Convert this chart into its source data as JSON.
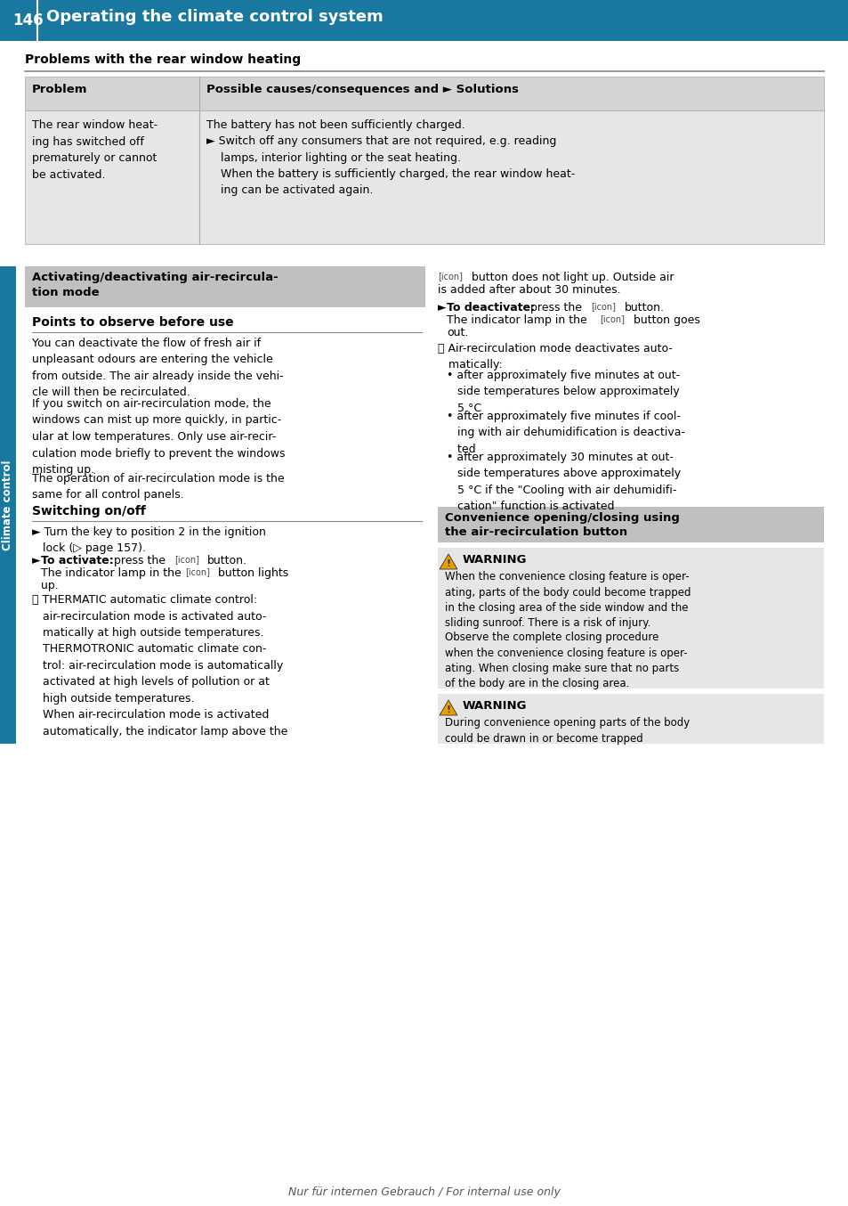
{
  "page_number": "146",
  "header_title": "Operating the climate control system",
  "header_bg": "#1878a0",
  "header_text_color": "#ffffff",
  "page_bg": "#ffffff",
  "sidebar_color": "#1878a0",
  "section1_title": "Problems with the rear window heating",
  "table_header_bg": "#d4d4d4",
  "table_row_bg": "#e6e6e6",
  "table_col1_header": "Problem",
  "table_col2_header": "Possible causes/consequences and ► Solutions",
  "table_col1_text": "The rear window heat-\ning has switched off\nprematurely or cannot\nbe activated.",
  "table_col2_text_line1": "The battery has not been sufficiently charged.",
  "table_col2_text_bullet": "► Switch off any consumers that are not required, e.g. reading\n    lamps, interior lighting or the seat heating.\n    When the battery is sufficiently charged, the rear window heat-\n    ing can be activated again.",
  "section2_box_title": "Activating/deactivating air-recircula-\ntion mode",
  "section2_box_bg": "#c0c0c0",
  "points_title": "Points to observe before use",
  "points_text1": "You can deactivate the flow of fresh air if\nunpleasant odours are entering the vehicle\nfrom outside. The air already inside the vehi-\ncle will then be recirculated.",
  "points_text2": "If you switch on air-recirculation mode, the\nwindows can mist up more quickly, in partic-\nular at low temperatures. Only use air-recir-\nculation mode briefly to prevent the windows\nmisting up.",
  "points_text3": "The operation of air-recirculation mode is the\nsame for all control panels.",
  "switching_title": "Switching on/off",
  "sw_bullet1": "► Turn the key to position 2 in the ignition\n   lock (▷ page 157).",
  "sw_bullet2a": "► To activate: press the",
  "sw_bullet2b": "button.",
  "sw_bullet2c": "The indicator lamp in the",
  "sw_bullet2d": "button lights",
  "sw_bullet2e": "up.",
  "sw_info": "ⓘ THERMATIC automatic climate control:\n   air-recirculation mode is activated auto-\n   matically at high outside temperatures.\n   THERMOTRONIC automatic climate con-\n   trol: air-recirculation mode is automatically\n   activated at high levels of pollution or at\n   high outside temperatures.\n   When air-recirculation mode is activated\n   automatically, the indicator lamp above the",
  "right_text1a": "button does not light up. Outside air",
  "right_text1b": "is added after about 30 minutes.",
  "right_deact_a": "► To deactivate: press the",
  "right_deact_b": "button.",
  "right_deact_c": "The indicator lamp in the",
  "right_deact_d": "button goes",
  "right_deact_e": "out.",
  "right_info": "ⓘ Air-recirculation mode deactivates auto-\n   matically:",
  "right_bullet1": "• after approximately five minutes at out-\n   side temperatures below approximately\n   5 °C",
  "right_bullet2": "• after approximately five minutes if cool-\n   ing with air dehumidification is deactiva-\n   ted",
  "right_bullet3": "• after approximately 30 minutes at out-\n   side temperatures above approximately\n   5 °C if the \"Cooling with air dehumidifi-\n   cation\" function is activated",
  "conv_box_title1": "Convenience opening/closing using",
  "conv_box_title2": "the air-recirculation button",
  "conv_box_bg": "#c0c0c0",
  "warn_bg": "#e6e6e6",
  "warn_title": "WARNING",
  "warn_color": "#e8a000",
  "warn1_text": "When the convenience closing feature is oper-\nating, parts of the body could become trapped\nin the closing area of the side window and the\nsliding sunroof. There is a risk of injury.",
  "warn1_text2": "Observe the complete closing procedure\nwhen the convenience closing feature is oper-\nating. When closing make sure that no parts\nof the body are in the closing area.",
  "warn2_text": "During convenience opening parts of the body\ncould be drawn in or become trapped",
  "footer_text": "Nur für internen Gebrauch / For internal use only",
  "sidebar_text": "Climate control"
}
